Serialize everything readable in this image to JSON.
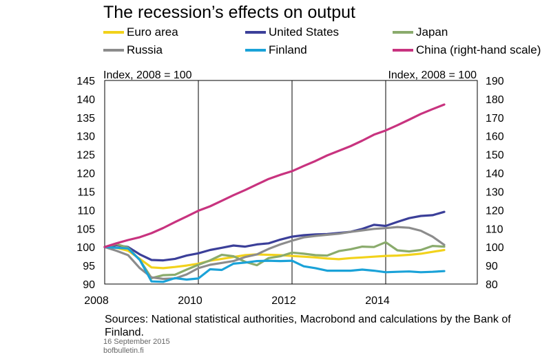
{
  "chart_data": {
    "type": "line",
    "title": "The recession’s effects on output",
    "ylabel_left": "Index, 2008 = 100",
    "ylabel_right": "Index, 2008 = 100",
    "ylim_left": [
      90,
      145
    ],
    "ylim_right": [
      80,
      190
    ],
    "yticks_left": [
      145,
      140,
      135,
      130,
      125,
      120,
      115,
      110,
      105,
      100,
      95,
      90
    ],
    "yticks_right": [
      190,
      180,
      170,
      160,
      150,
      140,
      130,
      120,
      110,
      100,
      90,
      80
    ],
    "xlim": [
      2008,
      2016
    ],
    "xticks": [
      {
        "value": 2008,
        "label": "2008"
      },
      {
        "value": 2010,
        "label": "2010"
      },
      {
        "value": 2012,
        "label": "2012"
      },
      {
        "value": 2014,
        "label": "2014"
      }
    ],
    "grid": true,
    "legend_position": "top",
    "series": [
      {
        "name": "Euro area",
        "axis": "left",
        "color": "#f2d21b",
        "x": [
          2008.0,
          2008.25,
          2008.5,
          2008.75,
          2009.0,
          2009.25,
          2009.5,
          2009.75,
          2010.0,
          2010.25,
          2010.5,
          2010.75,
          2011.0,
          2011.25,
          2011.5,
          2011.75,
          2012.0,
          2012.25,
          2012.5,
          2012.75,
          2013.0,
          2013.25,
          2013.5,
          2013.75,
          2014.0,
          2014.25,
          2014.5,
          2014.75,
          2015.0,
          2015.25
        ],
        "values": [
          100.0,
          99.8,
          99.0,
          96.8,
          94.5,
          94.3,
          94.6,
          95.0,
          95.5,
          96.3,
          96.8,
          97.3,
          97.8,
          98.0,
          97.9,
          97.8,
          97.6,
          97.4,
          97.2,
          96.9,
          96.7,
          97.0,
          97.2,
          97.4,
          97.6,
          97.7,
          97.9,
          98.2,
          98.7,
          99.2
        ]
      },
      {
        "name": "United States",
        "axis": "left",
        "color": "#3b3f99",
        "x": [
          2008.0,
          2008.25,
          2008.5,
          2008.75,
          2009.0,
          2009.25,
          2009.5,
          2009.75,
          2010.0,
          2010.25,
          2010.5,
          2010.75,
          2011.0,
          2011.25,
          2011.5,
          2011.75,
          2012.0,
          2012.25,
          2012.5,
          2012.75,
          2013.0,
          2013.25,
          2013.5,
          2013.75,
          2014.0,
          2014.25,
          2014.5,
          2014.75,
          2015.0,
          2015.25
        ],
        "values": [
          100.0,
          100.5,
          100.0,
          98.0,
          96.5,
          96.4,
          96.8,
          97.7,
          98.3,
          99.2,
          99.8,
          100.4,
          100.1,
          100.7,
          101.0,
          102.0,
          102.8,
          103.2,
          103.4,
          103.5,
          103.8,
          104.1,
          104.9,
          106.0,
          105.7,
          106.8,
          107.8,
          108.4,
          108.6,
          109.5
        ]
      },
      {
        "name": "Japan",
        "axis": "left",
        "color": "#8aab6c",
        "x": [
          2008.0,
          2008.25,
          2008.5,
          2008.75,
          2009.0,
          2009.25,
          2009.5,
          2009.75,
          2010.0,
          2010.25,
          2010.5,
          2010.75,
          2011.0,
          2011.25,
          2011.5,
          2011.75,
          2012.0,
          2012.25,
          2012.5,
          2012.75,
          2013.0,
          2013.25,
          2013.5,
          2013.75,
          2014.0,
          2014.25,
          2014.5,
          2014.75,
          2015.0,
          2015.25
        ],
        "values": [
          100.0,
          100.8,
          99.8,
          96.5,
          91.6,
          92.4,
          92.5,
          93.9,
          95.2,
          96.4,
          97.9,
          97.5,
          96.0,
          95.1,
          97.0,
          97.5,
          98.5,
          98.2,
          97.8,
          97.7,
          98.9,
          99.4,
          100.1,
          100.0,
          101.3,
          99.1,
          98.8,
          99.2,
          100.3,
          100.1
        ]
      },
      {
        "name": "Russia",
        "axis": "left",
        "color": "#8c8c8c",
        "x": [
          2008.0,
          2008.25,
          2008.5,
          2008.75,
          2009.0,
          2009.25,
          2009.5,
          2009.75,
          2010.0,
          2010.25,
          2010.5,
          2010.75,
          2011.0,
          2011.25,
          2011.5,
          2011.75,
          2012.0,
          2012.25,
          2012.5,
          2012.75,
          2013.0,
          2013.25,
          2013.5,
          2013.75,
          2014.0,
          2014.25,
          2014.5,
          2014.75,
          2015.0,
          2015.25
        ],
        "values": [
          100.0,
          99.0,
          97.8,
          94.3,
          91.8,
          91.4,
          91.5,
          92.6,
          94.3,
          95.2,
          95.7,
          96.2,
          97.3,
          98.0,
          99.5,
          100.7,
          101.7,
          102.6,
          103.0,
          103.3,
          103.6,
          104.1,
          104.5,
          104.9,
          105.1,
          105.4,
          105.2,
          104.4,
          102.8,
          100.6
        ]
      },
      {
        "name": "Finland",
        "axis": "left",
        "color": "#1aa2d8",
        "x": [
          2008.0,
          2008.25,
          2008.5,
          2008.75,
          2009.0,
          2009.25,
          2009.5,
          2009.75,
          2010.0,
          2010.25,
          2010.5,
          2010.75,
          2011.0,
          2011.25,
          2011.5,
          2011.75,
          2012.0,
          2012.25,
          2012.5,
          2012.75,
          2013.0,
          2013.25,
          2013.5,
          2013.75,
          2014.0,
          2014.25,
          2014.5,
          2014.75,
          2015.0,
          2015.25
        ],
        "values": [
          100.0,
          99.8,
          99.6,
          96.5,
          90.7,
          90.6,
          91.6,
          91.2,
          91.5,
          94.0,
          93.8,
          95.5,
          95.8,
          96.2,
          96.3,
          96.2,
          96.3,
          94.8,
          94.3,
          93.6,
          93.6,
          93.6,
          93.9,
          93.6,
          93.2,
          93.3,
          93.4,
          93.2,
          93.3,
          93.5
        ]
      },
      {
        "name": "China (right-hand scale)",
        "axis": "right",
        "color": "#c8337f",
        "x": [
          2008.0,
          2008.25,
          2008.5,
          2008.75,
          2009.0,
          2009.25,
          2009.5,
          2009.75,
          2010.0,
          2010.25,
          2010.5,
          2010.75,
          2011.0,
          2011.25,
          2011.5,
          2011.75,
          2012.0,
          2012.25,
          2012.5,
          2012.75,
          2013.0,
          2013.25,
          2013.5,
          2013.75,
          2014.0,
          2014.25,
          2014.5,
          2014.75,
          2015.0,
          2015.25
        ],
        "values": [
          100.0,
          102.0,
          103.8,
          105.3,
          107.5,
          110.3,
          113.5,
          116.5,
          119.6,
          122.0,
          125.0,
          128.0,
          130.8,
          133.8,
          136.8,
          139.0,
          141.0,
          143.8,
          146.5,
          149.5,
          152.0,
          154.5,
          157.5,
          160.7,
          163.0,
          165.8,
          168.8,
          171.9,
          174.5,
          177.0
        ]
      }
    ]
  },
  "footer": {
    "sources": "Sources: National statistical authorities, Macrobond and calculations by the Bank of Finland.",
    "date": "16 September  2015",
    "site": "bofbulletin.fi"
  }
}
